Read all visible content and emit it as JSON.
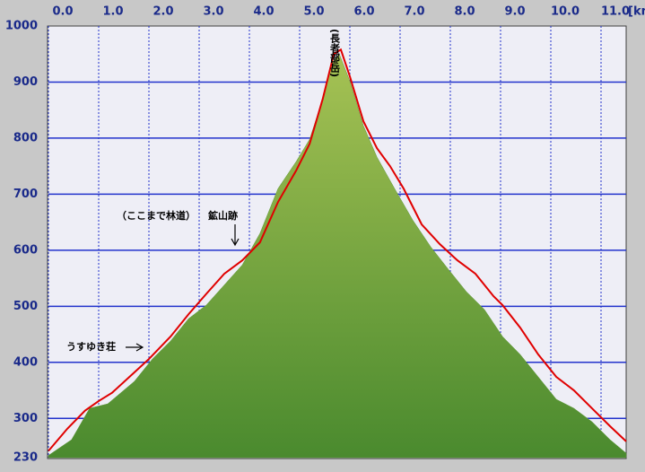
{
  "chart_data": {
    "type": "area-line",
    "xlabel": "[km",
    "xlim": [
      0,
      11.5
    ],
    "xticks": [
      {
        "value": 0,
        "label": "0.0"
      },
      {
        "value": 1,
        "label": "1.0"
      },
      {
        "value": 2,
        "label": "2.0"
      },
      {
        "value": 3,
        "label": "3.0"
      },
      {
        "value": 4,
        "label": "4.0"
      },
      {
        "value": 5,
        "label": "5.0"
      },
      {
        "value": 6,
        "label": "6.0"
      },
      {
        "value": 7,
        "label": "7.0"
      },
      {
        "value": 8,
        "label": "8.0"
      },
      {
        "value": 9,
        "label": "9.0"
      },
      {
        "value": 10,
        "label": "10.0"
      },
      {
        "value": 11,
        "label": "11.0"
      }
    ],
    "ylim": [
      230,
      1000
    ],
    "yticks": [
      230,
      300,
      400,
      500,
      600,
      700,
      800,
      900,
      1000
    ],
    "grid": true,
    "series": [
      {
        "kind": "area",
        "color": "#5f9a3a",
        "x": [
          0,
          0.46,
          0.82,
          1.18,
          1.71,
          2.07,
          2.43,
          2.79,
          3.14,
          3.5,
          3.86,
          4.21,
          4.57,
          4.93,
          5.2,
          5.46,
          5.64,
          5.79,
          6.0,
          6.27,
          6.54,
          6.89,
          7.25,
          7.61,
          7.96,
          8.32,
          8.68,
          9.04,
          9.39,
          9.75,
          10.11,
          10.46,
          10.82,
          11.18,
          11.5
        ],
        "values": [
          234,
          262,
          318,
          326,
          366,
          406,
          438,
          478,
          502,
          538,
          574,
          630,
          710,
          758,
          798,
          870,
          934,
          950,
          902,
          822,
          766,
          710,
          654,
          606,
          566,
          526,
          494,
          446,
          414,
          374,
          334,
          318,
          294,
          262,
          238
        ]
      },
      {
        "kind": "line",
        "color": "#e00000",
        "x": [
          0,
          0.38,
          0.73,
          1.0,
          1.27,
          1.71,
          2.0,
          2.43,
          2.79,
          3.14,
          3.5,
          3.86,
          4.21,
          4.57,
          4.93,
          5.2,
          5.46,
          5.68,
          5.82,
          6.0,
          6.27,
          6.54,
          6.8,
          7.07,
          7.43,
          7.79,
          8.14,
          8.5,
          8.86,
          9.04,
          9.39,
          9.75,
          10.11,
          10.46,
          10.82,
          11.18,
          11.5
        ],
        "values": [
          242,
          282,
          314,
          331,
          346,
          382,
          406,
          446,
          486,
          522,
          558,
          582,
          614,
          686,
          742,
          790,
          870,
          950,
          958,
          910,
          830,
          782,
          750,
          710,
          646,
          611,
          582,
          558,
          518,
          502,
          462,
          414,
          374,
          350,
          318,
          286,
          259
        ]
      }
    ],
    "annotations": [
      "（ここまで林道）",
      "鉱山跡",
      "うすゆき荘",
      "(長者部岳)"
    ]
  }
}
